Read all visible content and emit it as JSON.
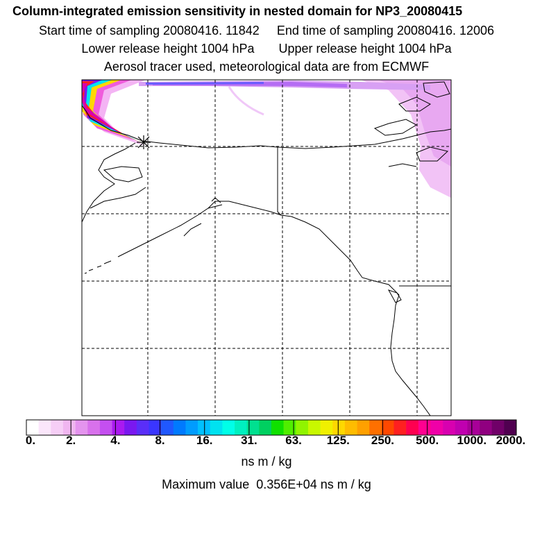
{
  "header": {
    "title": "Column-integrated emission sensitivity in nested domain for NP3_20080415",
    "line2": "Start time of sampling 20080416. 11842     End time of sampling 20080416. 12006",
    "line3": "Lower release height 1004 hPa       Upper release height 1004 hPa",
    "line4": "Aerosol tracer used, meteorological data are from ECMWF"
  },
  "colorbar": {
    "tick_labels": [
      "0.",
      "2.",
      "4.",
      "8.",
      "16.",
      "31.",
      "63.",
      "125.",
      "250.",
      "500.",
      "1000.",
      "2000."
    ],
    "units": "ns m / kg",
    "colors": [
      "#ffffff",
      "#fbe6fb",
      "#f6cef6",
      "#f0b6f0",
      "#e494ee",
      "#d871ec",
      "#c44ff0",
      "#aa1af0",
      "#7a18f0",
      "#5a2ef8",
      "#3a36ff",
      "#2058ff",
      "#007aff",
      "#009cff",
      "#00c0ff",
      "#00e2f0",
      "#00ffe8",
      "#00f0c0",
      "#00e090",
      "#00d060",
      "#10e000",
      "#50ee00",
      "#90f400",
      "#c8f800",
      "#f0f000",
      "#ffd800",
      "#ffbc00",
      "#ffa000",
      "#ff7000",
      "#ff4800",
      "#ff2020",
      "#ff0050",
      "#ff0090",
      "#f000a8",
      "#d800b0",
      "#c000b0",
      "#a80098",
      "#900080",
      "#700068",
      "#500050"
    ]
  },
  "max_value": {
    "text": "Maximum value  0.356E+04 ns m / kg"
  },
  "map": {
    "release_marker": "asterisk-marker"
  }
}
